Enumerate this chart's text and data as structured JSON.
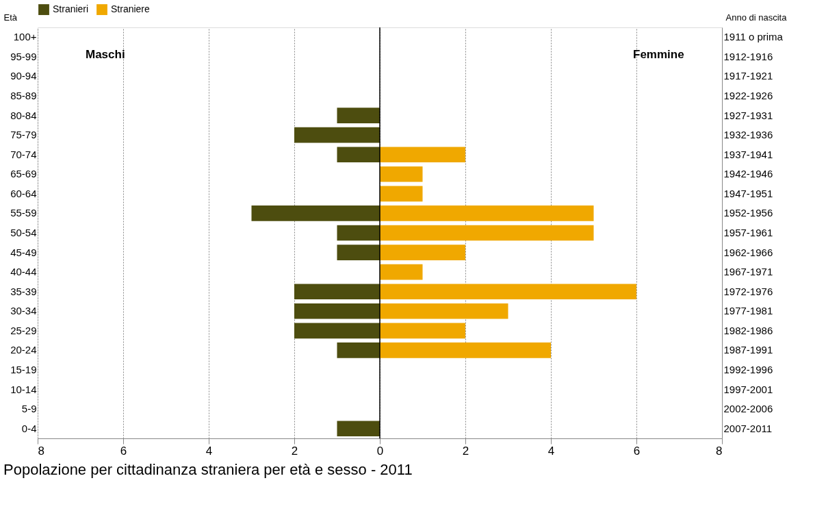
{
  "chart_data": {
    "type": "bar",
    "orientation": "horizontal",
    "title": "Popolazione per cittadinanza straniera per età e sesso - 2011",
    "ylabel": "Età",
    "y2label": "Anno di nascita",
    "categories": [
      "100+",
      "95-99",
      "90-94",
      "85-89",
      "80-84",
      "75-79",
      "70-74",
      "65-69",
      "60-64",
      "55-59",
      "50-54",
      "45-49",
      "40-44",
      "35-39",
      "30-34",
      "25-29",
      "20-24",
      "15-19",
      "10-14",
      "5-9",
      "0-4"
    ],
    "y2_categories": [
      "1911 o prima",
      "1912-1916",
      "1917-1921",
      "1922-1926",
      "1927-1931",
      "1932-1936",
      "1937-1941",
      "1942-1946",
      "1947-1951",
      "1952-1956",
      "1957-1961",
      "1962-1966",
      "1967-1971",
      "1972-1976",
      "1977-1981",
      "1982-1986",
      "1987-1991",
      "1992-1996",
      "1997-2001",
      "2002-2006",
      "2007-2011"
    ],
    "series": [
      {
        "name": "Stranieri",
        "color": "#4d4d0f",
        "values": [
          null,
          null,
          null,
          null,
          -1,
          -2,
          -1,
          null,
          null,
          -3,
          -1,
          -1,
          null,
          -2,
          -2,
          -2,
          -1,
          null,
          null,
          null,
          -1
        ]
      },
      {
        "name": "Straniere",
        "color": "#f0a800",
        "values": [
          null,
          null,
          null,
          null,
          null,
          null,
          2,
          1,
          1,
          5,
          5,
          2,
          1,
          6,
          3,
          2,
          4,
          null,
          null,
          null,
          null
        ]
      }
    ],
    "xlim": [
      -8,
      8
    ],
    "xticks": [
      {
        "value": -8,
        "label": "8"
      },
      {
        "value": -6,
        "label": "6"
      },
      {
        "value": -4,
        "label": "4"
      },
      {
        "value": -2,
        "label": "2"
      },
      0,
      2,
      4,
      6,
      8
    ],
    "ref_lines": [
      {
        "axis": "x",
        "value": 0,
        "color": "#000000"
      }
    ],
    "annotations": [
      "Maschi",
      "Femmine"
    ],
    "grid": "x",
    "legend": "top"
  }
}
